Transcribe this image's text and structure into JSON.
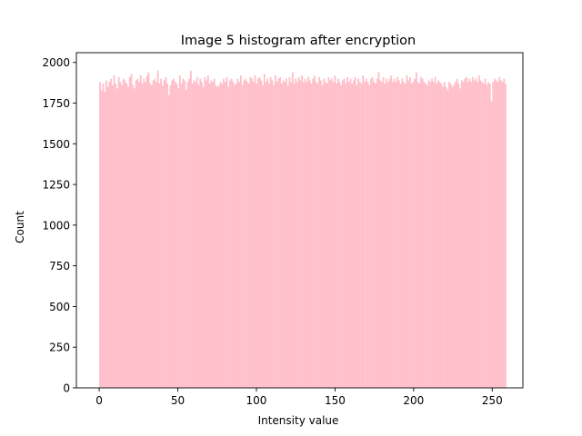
{
  "chart_data": {
    "type": "bar",
    "title": "Image 5 histogram after encryption",
    "xlabel": "Intensity value",
    "ylabel": "Count",
    "xlim": [
      -14.5,
      269.5
    ],
    "ylim": [
      0,
      2060
    ],
    "xticks": [
      0,
      50,
      100,
      150,
      200,
      250
    ],
    "yticks": [
      0,
      250,
      500,
      750,
      1000,
      1250,
      1500,
      1750,
      2000
    ],
    "bar_color": "#ffc0cb",
    "grid": false,
    "bin_start": 0,
    "bin_width": 0.996,
    "values": [
      1880,
      1830,
      1870,
      1820,
      1890,
      1850,
      1880,
      1900,
      1860,
      1920,
      1870,
      1840,
      1910,
      1880,
      1860,
      1900,
      1890,
      1870,
      1850,
      1910,
      1930,
      1860,
      1840,
      1890,
      1900,
      1880,
      1920,
      1870,
      1900,
      1880,
      1920,
      1940,
      1870,
      1860,
      1890,
      1900,
      1880,
      1950,
      1870,
      1900,
      1860,
      1890,
      1910,
      1870,
      1800,
      1860,
      1890,
      1900,
      1880,
      1870,
      1840,
      1920,
      1870,
      1900,
      1890,
      1830,
      1880,
      1900,
      1950,
      1870,
      1890,
      1880,
      1910,
      1860,
      1900,
      1880,
      1850,
      1910,
      1890,
      1920,
      1870,
      1890,
      1880,
      1900,
      1860,
      1850,
      1860,
      1880,
      1870,
      1900,
      1880,
      1910,
      1850,
      1890,
      1900,
      1880,
      1860,
      1870,
      1900,
      1880,
      1920,
      1860,
      1890,
      1900,
      1880,
      1870,
      1910,
      1900,
      1880,
      1920,
      1870,
      1900,
      1910,
      1890,
      1860,
      1930,
      1880,
      1900,
      1870,
      1910,
      1890,
      1860,
      1920,
      1880,
      1900,
      1910,
      1870,
      1890,
      1880,
      1900,
      1860,
      1910,
      1880,
      1940,
      1870,
      1900,
      1880,
      1910,
      1890,
      1920,
      1880,
      1900,
      1880,
      1910,
      1890,
      1870,
      1900,
      1920,
      1880,
      1870,
      1910,
      1890,
      1860,
      1900,
      1880,
      1870,
      1910,
      1890,
      1900,
      1880,
      1920,
      1870,
      1900,
      1880,
      1860,
      1890,
      1900,
      1870,
      1910,
      1880,
      1900,
      1870,
      1890,
      1910,
      1860,
      1900,
      1880,
      1870,
      1920,
      1880,
      1900,
      1880,
      1860,
      1900,
      1910,
      1880,
      1870,
      1900,
      1940,
      1890,
      1880,
      1910,
      1870,
      1900,
      1880,
      1900,
      1920,
      1880,
      1900,
      1880,
      1910,
      1890,
      1870,
      1900,
      1880,
      1870,
      1920,
      1890,
      1910,
      1870,
      1880,
      1900,
      1940,
      1880,
      1870,
      1910,
      1900,
      1880,
      1870,
      1860,
      1890,
      1880,
      1900,
      1880,
      1910,
      1870,
      1890,
      1880,
      1870,
      1850,
      1880,
      1850,
      1830,
      1880,
      1870,
      1850,
      1860,
      1880,
      1900,
      1870,
      1840,
      1890,
      1880,
      1900,
      1910,
      1880,
      1900,
      1880,
      1910,
      1890,
      1900,
      1880,
      1920,
      1890,
      1880,
      1870,
      1900,
      1860,
      1880,
      1870,
      1760,
      1880,
      1900,
      1890,
      1880,
      1910,
      1890,
      1880,
      1900,
      1870
    ]
  }
}
